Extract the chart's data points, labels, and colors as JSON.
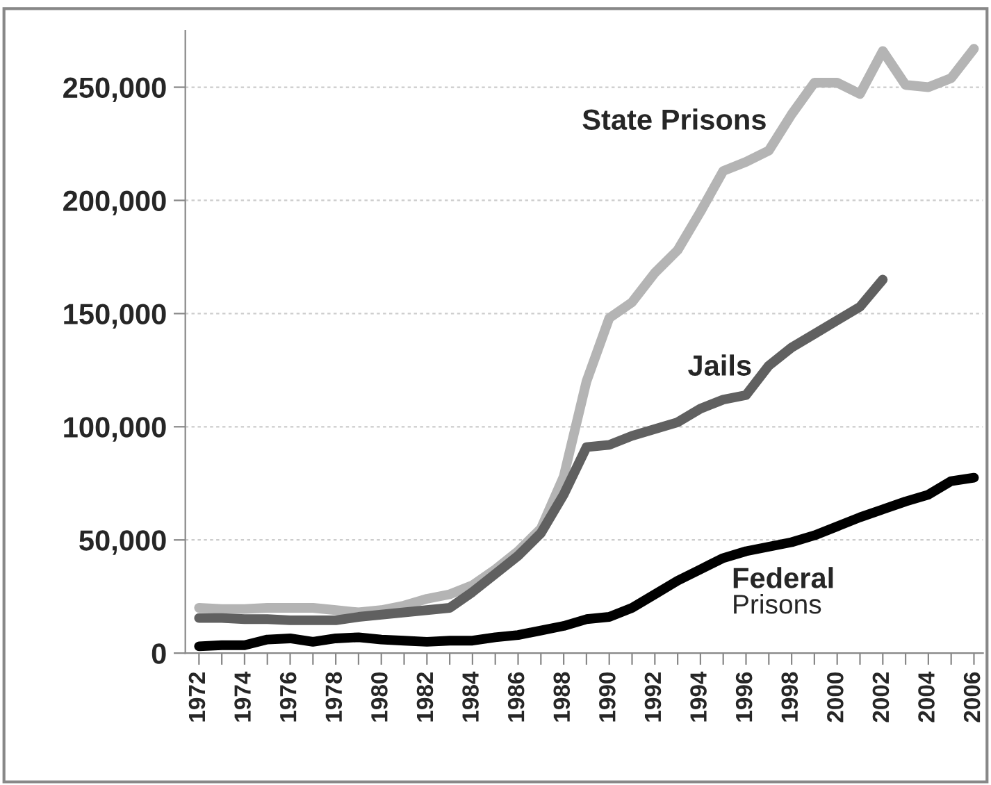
{
  "chart_data": {
    "type": "line",
    "categories": [
      "1972",
      null,
      "1974",
      null,
      "1976",
      null,
      "1978",
      null,
      "1980",
      null,
      "1982",
      null,
      "1984",
      null,
      "1986",
      null,
      "1988",
      null,
      "1990",
      null,
      "1992",
      null,
      "1994",
      null,
      "1996",
      null,
      "1998",
      null,
      "2000",
      null,
      "2002",
      null,
      "2004",
      null,
      "2006"
    ],
    "series": [
      {
        "name": "State Prisons",
        "color": "#b4b4b4",
        "values": [
          20000,
          19500,
          19500,
          20000,
          20000,
          20000,
          19000,
          18000,
          19000,
          21000,
          24000,
          26000,
          30000,
          37000,
          45000,
          55000,
          78000,
          120000,
          148000,
          155000,
          168000,
          178000,
          195000,
          213000,
          217000,
          222000,
          238000,
          252000,
          252000,
          247000,
          266000,
          251000,
          250000,
          254000,
          267000
        ]
      },
      {
        "name": "Jails",
        "color": "#606060",
        "values": [
          15500,
          15500,
          15000,
          15000,
          14500,
          14500,
          14500,
          16000,
          17000,
          18000,
          19000,
          20000,
          27000,
          35000,
          43000,
          53000,
          70000,
          91000,
          92000,
          96000,
          99000,
          102000,
          108000,
          112000,
          114000,
          127000,
          135000,
          141000,
          147000,
          153000,
          165000,
          null,
          null,
          null,
          null
        ]
      },
      {
        "name": "Federal Prisons",
        "color": "#000000",
        "values": [
          3000,
          3500,
          3500,
          6000,
          6500,
          5000,
          6500,
          7000,
          6000,
          5500,
          5000,
          5500,
          5500,
          7000,
          8000,
          10000,
          12000,
          15000,
          16000,
          20000,
          26000,
          32000,
          37000,
          42000,
          45000,
          47000,
          49000,
          52000,
          56000,
          60000,
          63500,
          67000,
          70000,
          76000,
          77500
        ]
      }
    ],
    "ylim": [
      0,
      275000
    ],
    "yticks": [
      {
        "value": 0,
        "label": "0"
      },
      {
        "value": 50000,
        "label": "50,000"
      },
      {
        "value": 100000,
        "label": "100,000"
      },
      {
        "value": 150000,
        "label": "150,000"
      },
      {
        "value": 200000,
        "label": "200,000"
      },
      {
        "value": 250000,
        "label": "250,000"
      }
    ],
    "grid": "y",
    "legend": false,
    "marker": "none",
    "line_style": "solid"
  }
}
